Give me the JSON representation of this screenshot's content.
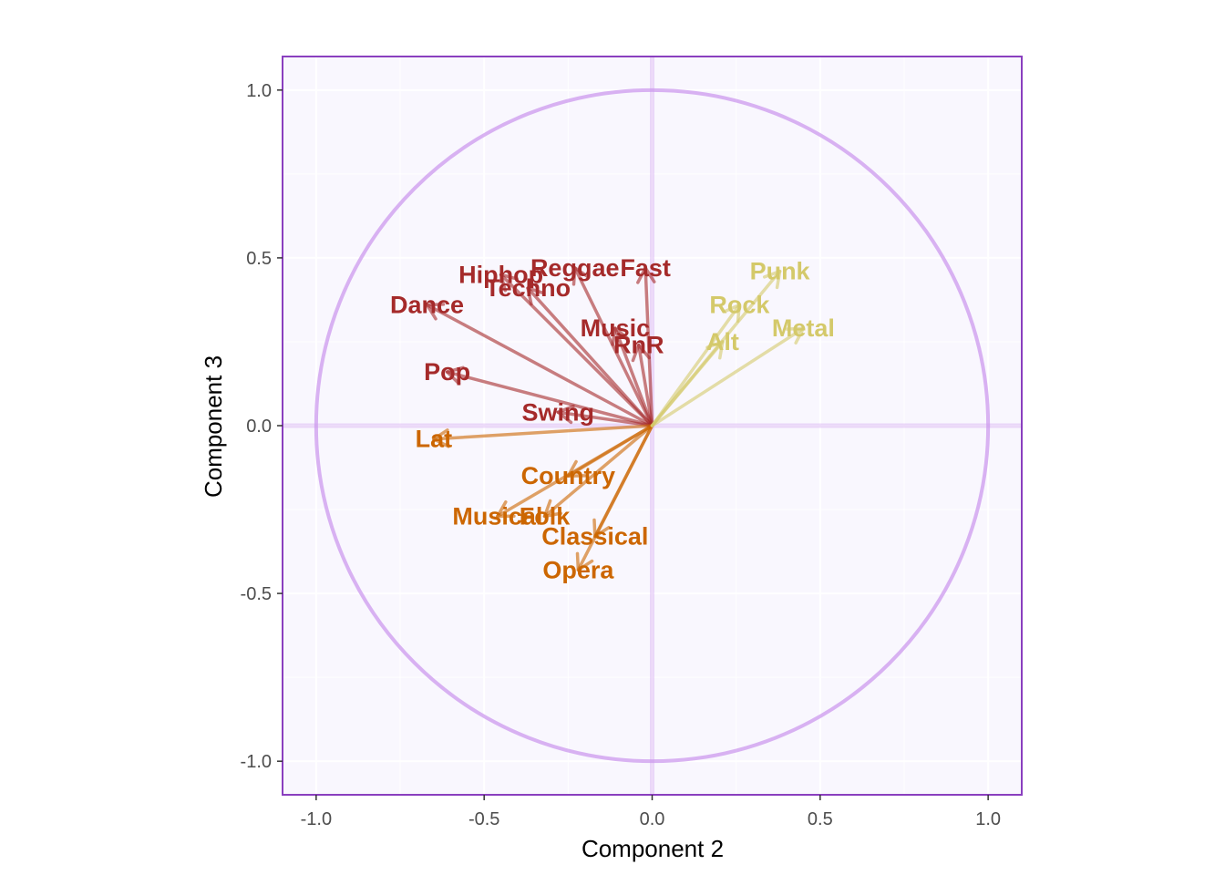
{
  "chart_data": {
    "type": "scatter",
    "subtype": "correlation-circle-biplot",
    "xlabel": "Component 2",
    "ylabel": "Component 3",
    "xlim": [
      -1.1,
      1.1
    ],
    "ylim": [
      -1.1,
      1.1
    ],
    "x_ticks": [
      -1.0,
      -0.5,
      0.0,
      0.5,
      1.0
    ],
    "y_ticks": [
      -1.0,
      -0.5,
      0.0,
      0.5,
      1.0
    ],
    "x_tick_labels": [
      "-1.0",
      "-0.5",
      "0.0",
      "0.5",
      "1.0"
    ],
    "y_tick_labels": [
      "-1.0",
      "-0.5",
      "0.0",
      "0.5",
      "1.0"
    ],
    "unit_circle_radius": 1.0,
    "grid": true,
    "colors": {
      "panel_background": "#f9f7fe",
      "panel_border": "#8a3fbf",
      "circle": "#cc99ee",
      "gridline": "#ffffff",
      "group_red": "#a52a2a",
      "group_orange": "#cc6600",
      "group_yellow": "#d4c96a"
    },
    "series": [
      {
        "color_key": "group_red",
        "points": [
          {
            "label": "Hiphop",
            "x": -0.45,
            "y": 0.45
          },
          {
            "label": "Reggae",
            "x": -0.23,
            "y": 0.47
          },
          {
            "label": "Fast",
            "x": -0.02,
            "y": 0.47
          },
          {
            "label": "Techno",
            "x": -0.37,
            "y": 0.41
          },
          {
            "label": "Music",
            "x": -0.11,
            "y": 0.29
          },
          {
            "label": "Dance",
            "x": -0.67,
            "y": 0.36
          },
          {
            "label": "Pop",
            "x": -0.61,
            "y": 0.16
          },
          {
            "label": "RnR",
            "x": -0.04,
            "y": 0.24
          },
          {
            "label": "Swing",
            "x": -0.28,
            "y": 0.04
          }
        ]
      },
      {
        "color_key": "group_orange",
        "points": [
          {
            "label": "Lat",
            "x": -0.65,
            "y": -0.04
          },
          {
            "label": "Country",
            "x": -0.25,
            "y": -0.15
          },
          {
            "label": "Musical",
            "x": -0.46,
            "y": -0.27
          },
          {
            "label": "Folk",
            "x": -0.32,
            "y": -0.27
          },
          {
            "label": "Classical",
            "x": -0.17,
            "y": -0.33
          },
          {
            "label": "Opera",
            "x": -0.22,
            "y": -0.43
          }
        ]
      },
      {
        "color_key": "group_yellow",
        "points": [
          {
            "label": "Punk",
            "x": 0.38,
            "y": 0.46
          },
          {
            "label": "Rock",
            "x": 0.26,
            "y": 0.36
          },
          {
            "label": "Metal",
            "x": 0.45,
            "y": 0.29
          },
          {
            "label": "Alt",
            "x": 0.21,
            "y": 0.25
          }
        ]
      }
    ]
  }
}
